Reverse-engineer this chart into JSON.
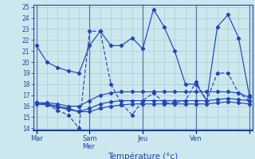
{
  "title": "Température (°c)",
  "bg_color": "#cce8ee",
  "grid_color": "#aacccc",
  "line_color": "#2244bb",
  "ylim": [
    13.8,
    25.2
  ],
  "yticks": [
    14,
    15,
    16,
    17,
    18,
    19,
    20,
    21,
    22,
    23,
    24,
    25
  ],
  "xlim": [
    -0.3,
    20.3
  ],
  "day_tick_positions": [
    0,
    5,
    10,
    15,
    20
  ],
  "day_labels": [
    "Mar",
    "Sam\nMer",
    "Jeu",
    "Ven",
    ""
  ],
  "n": 21,
  "series1": [
    21.5,
    20.0,
    19.5,
    19.2,
    19.0,
    21.5,
    22.8,
    21.5,
    21.5,
    22.2,
    21.2,
    24.8,
    23.2,
    21.0,
    18.0,
    18.0,
    16.5,
    23.2,
    24.3,
    22.2,
    17.0
  ],
  "series2": [
    16.3,
    16.2,
    15.6,
    15.2,
    14.0,
    22.8,
    22.8,
    18.0,
    16.2,
    15.2,
    16.5,
    17.2,
    16.3,
    16.3,
    16.5,
    18.2,
    16.5,
    19.0,
    19.0,
    17.2,
    16.5
  ],
  "series3": [
    16.3,
    16.3,
    16.2,
    16.0,
    16.0,
    16.5,
    17.0,
    17.2,
    17.3,
    17.3,
    17.3,
    17.3,
    17.3,
    17.3,
    17.3,
    17.3,
    17.3,
    17.3,
    17.3,
    17.2,
    16.8
  ],
  "series4": [
    16.3,
    16.2,
    16.0,
    15.8,
    15.5,
    15.8,
    16.2,
    16.4,
    16.5,
    16.5,
    16.5,
    16.5,
    16.5,
    16.5,
    16.5,
    16.5,
    16.5,
    16.6,
    16.7,
    16.6,
    16.5
  ],
  "series5": [
    16.2,
    16.1,
    15.9,
    15.7,
    15.5,
    15.5,
    15.8,
    16.0,
    16.1,
    16.2,
    16.2,
    16.2,
    16.2,
    16.2,
    16.2,
    16.2,
    16.2,
    16.3,
    16.4,
    16.3,
    16.2
  ]
}
